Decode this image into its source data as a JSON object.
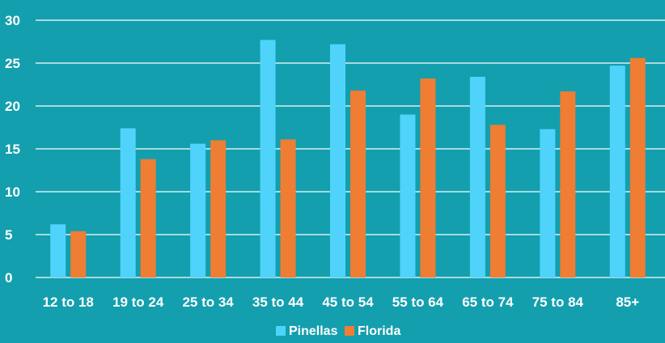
{
  "chart_data": {
    "type": "bar",
    "title": "",
    "xlabel": "",
    "ylabel": "",
    "categories": [
      "12 to 18",
      "19 to 24",
      "25 to 34",
      "35 to 44",
      "45 to 54",
      "55 to 64",
      "65 to 74",
      "75 to 84",
      "85+"
    ],
    "series": [
      {
        "name": "Pinellas",
        "color": "#4fd3fb",
        "values": [
          6.2,
          17.4,
          15.6,
          27.7,
          27.2,
          19.0,
          23.4,
          17.3,
          24.7
        ]
      },
      {
        "name": "Florida",
        "color": "#ef7d33",
        "values": [
          5.4,
          13.8,
          16.0,
          16.1,
          21.8,
          23.2,
          17.8,
          21.7,
          25.6
        ]
      }
    ],
    "ylim": [
      0,
      30
    ],
    "yticks": [
      0,
      5,
      10,
      15,
      20,
      25,
      30
    ],
    "grid": true,
    "legend_position": "bottom-center",
    "background_color": "#139fae",
    "gridline_color": "#ffffff"
  }
}
